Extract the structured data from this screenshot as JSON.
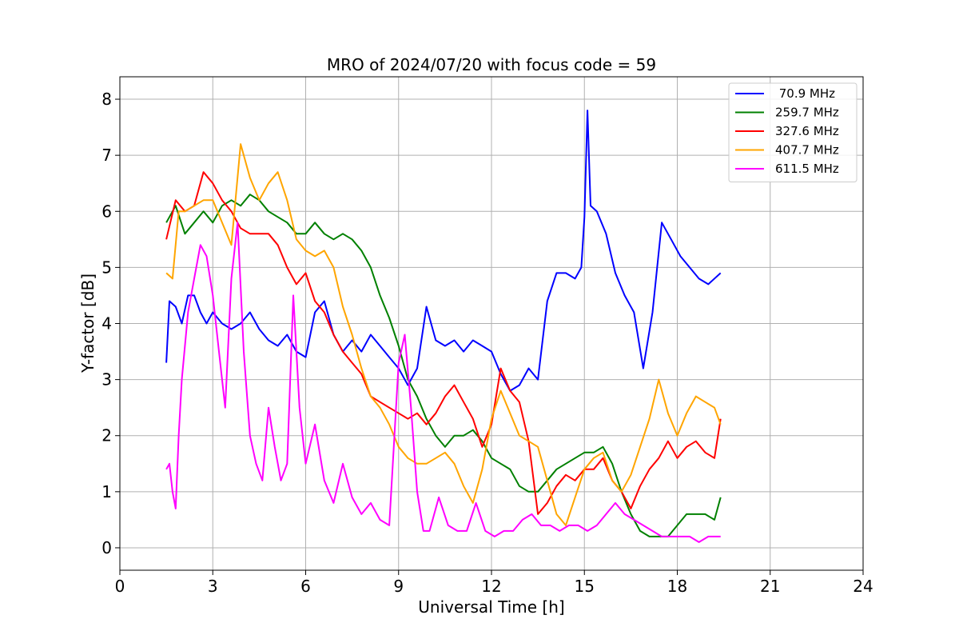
{
  "chart_data": {
    "type": "line",
    "title": "MRO of 2024/07/20 with focus code = 59",
    "xlabel": "Universal Time [h]",
    "ylabel": "Y-factor [dB]",
    "xlim": [
      0,
      24
    ],
    "ylim": [
      -0.4,
      8.4
    ],
    "xticks": [
      0,
      3,
      6,
      9,
      12,
      15,
      18,
      21,
      24
    ],
    "yticks": [
      0,
      1,
      2,
      3,
      4,
      5,
      6,
      7,
      8
    ],
    "grid": true,
    "legend_position": "top-right",
    "series": [
      {
        "name": " 70.9 MHz",
        "color": "#0000ff",
        "x": [
          1.5,
          1.6,
          1.8,
          2.0,
          2.2,
          2.4,
          2.6,
          2.8,
          3.0,
          3.3,
          3.6,
          3.9,
          4.2,
          4.5,
          4.8,
          5.1,
          5.4,
          5.7,
          6.0,
          6.3,
          6.6,
          6.9,
          7.2,
          7.5,
          7.8,
          8.1,
          8.4,
          8.7,
          9.0,
          9.3,
          9.6,
          9.9,
          10.2,
          10.5,
          10.8,
          11.1,
          11.4,
          11.7,
          12.0,
          12.3,
          12.6,
          12.9,
          13.2,
          13.5,
          13.8,
          14.1,
          14.4,
          14.7,
          14.9,
          15.0,
          15.1,
          15.2,
          15.4,
          15.7,
          16.0,
          16.3,
          16.6,
          16.9,
          17.2,
          17.5,
          17.8,
          18.1,
          18.4,
          18.7,
          19.0,
          19.4
        ],
        "y": [
          3.3,
          4.4,
          4.3,
          4.0,
          4.5,
          4.5,
          4.2,
          4.0,
          4.2,
          4.0,
          3.9,
          4.0,
          4.2,
          3.9,
          3.7,
          3.6,
          3.8,
          3.5,
          3.4,
          4.2,
          4.4,
          3.8,
          3.5,
          3.7,
          3.5,
          3.8,
          3.6,
          3.4,
          3.2,
          2.9,
          3.2,
          4.3,
          3.7,
          3.6,
          3.7,
          3.5,
          3.7,
          3.6,
          3.5,
          3.1,
          2.8,
          2.9,
          3.2,
          3.0,
          4.4,
          4.9,
          4.9,
          4.8,
          5.0,
          5.9,
          7.8,
          6.1,
          6.0,
          5.6,
          4.9,
          4.5,
          4.2,
          3.2,
          4.2,
          5.8,
          5.5,
          5.2,
          5.0,
          4.8,
          4.7,
          4.9
        ]
      },
      {
        "name": "259.7 MHz",
        "color": "#008000",
        "x": [
          1.5,
          1.8,
          2.1,
          2.4,
          2.7,
          3.0,
          3.3,
          3.6,
          3.9,
          4.2,
          4.5,
          4.8,
          5.1,
          5.4,
          5.7,
          6.0,
          6.3,
          6.6,
          6.9,
          7.2,
          7.5,
          7.8,
          8.1,
          8.4,
          8.7,
          9.0,
          9.3,
          9.6,
          9.9,
          10.2,
          10.5,
          10.8,
          11.1,
          11.4,
          11.7,
          12.0,
          12.3,
          12.6,
          12.9,
          13.2,
          13.5,
          13.8,
          14.1,
          14.4,
          14.7,
          15.0,
          15.3,
          15.6,
          15.9,
          16.2,
          16.5,
          16.8,
          17.1,
          17.4,
          17.7,
          18.0,
          18.3,
          18.6,
          18.9,
          19.2,
          19.4
        ],
        "y": [
          5.8,
          6.1,
          5.6,
          5.8,
          6.0,
          5.8,
          6.1,
          6.2,
          6.1,
          6.3,
          6.2,
          6.0,
          5.9,
          5.8,
          5.6,
          5.6,
          5.8,
          5.6,
          5.5,
          5.6,
          5.5,
          5.3,
          5.0,
          4.5,
          4.1,
          3.6,
          3.0,
          2.7,
          2.3,
          2.0,
          1.8,
          2.0,
          2.0,
          2.1,
          1.9,
          1.6,
          1.5,
          1.4,
          1.1,
          1.0,
          1.0,
          1.2,
          1.4,
          1.5,
          1.6,
          1.7,
          1.7,
          1.8,
          1.5,
          1.0,
          0.6,
          0.3,
          0.2,
          0.2,
          0.2,
          0.4,
          0.6,
          0.6,
          0.6,
          0.5,
          0.9
        ]
      },
      {
        "name": "327.6 MHz",
        "color": "#ff0000",
        "x": [
          1.5,
          1.8,
          2.1,
          2.4,
          2.7,
          3.0,
          3.3,
          3.6,
          3.9,
          4.2,
          4.5,
          4.8,
          5.1,
          5.4,
          5.7,
          6.0,
          6.3,
          6.6,
          6.9,
          7.2,
          7.5,
          7.8,
          8.1,
          8.4,
          8.7,
          9.0,
          9.3,
          9.6,
          9.9,
          10.2,
          10.5,
          10.8,
          11.1,
          11.4,
          11.7,
          12.0,
          12.3,
          12.6,
          12.9,
          13.2,
          13.5,
          13.8,
          14.1,
          14.4,
          14.7,
          15.0,
          15.3,
          15.6,
          15.9,
          16.2,
          16.5,
          16.8,
          17.1,
          17.4,
          17.7,
          18.0,
          18.3,
          18.6,
          18.9,
          19.2,
          19.4
        ],
        "y": [
          5.5,
          6.2,
          6.0,
          6.1,
          6.7,
          6.5,
          6.2,
          6.0,
          5.7,
          5.6,
          5.6,
          5.6,
          5.4,
          5.0,
          4.7,
          4.9,
          4.4,
          4.2,
          3.8,
          3.5,
          3.3,
          3.1,
          2.7,
          2.6,
          2.5,
          2.4,
          2.3,
          2.4,
          2.2,
          2.4,
          2.7,
          2.9,
          2.6,
          2.3,
          1.8,
          2.2,
          3.2,
          2.8,
          2.6,
          1.9,
          0.6,
          0.8,
          1.1,
          1.3,
          1.2,
          1.4,
          1.4,
          1.6,
          1.2,
          1.0,
          0.7,
          1.1,
          1.4,
          1.6,
          1.9,
          1.6,
          1.8,
          1.9,
          1.7,
          1.6,
          2.3
        ]
      },
      {
        "name": "407.7 MHz",
        "color": "#ffa500",
        "x": [
          1.5,
          1.7,
          1.9,
          2.1,
          2.4,
          2.7,
          3.0,
          3.3,
          3.6,
          3.9,
          4.2,
          4.5,
          4.8,
          5.1,
          5.4,
          5.7,
          6.0,
          6.3,
          6.6,
          6.9,
          7.2,
          7.5,
          7.8,
          8.1,
          8.4,
          8.7,
          9.0,
          9.3,
          9.6,
          9.9,
          10.2,
          10.5,
          10.8,
          11.1,
          11.4,
          11.7,
          12.0,
          12.3,
          12.6,
          12.9,
          13.2,
          13.5,
          13.8,
          14.1,
          14.4,
          14.7,
          15.0,
          15.3,
          15.6,
          15.9,
          16.2,
          16.5,
          16.8,
          17.1,
          17.4,
          17.7,
          18.0,
          18.3,
          18.6,
          18.9,
          19.2,
          19.4
        ],
        "y": [
          4.9,
          4.8,
          6.0,
          6.0,
          6.1,
          6.2,
          6.2,
          5.8,
          5.4,
          7.2,
          6.6,
          6.2,
          6.5,
          6.7,
          6.2,
          5.5,
          5.3,
          5.2,
          5.3,
          5.0,
          4.3,
          3.8,
          3.2,
          2.7,
          2.5,
          2.2,
          1.8,
          1.6,
          1.5,
          1.5,
          1.6,
          1.7,
          1.5,
          1.1,
          0.8,
          1.4,
          2.3,
          2.8,
          2.4,
          2.0,
          1.9,
          1.8,
          1.2,
          0.6,
          0.4,
          0.9,
          1.4,
          1.6,
          1.7,
          1.2,
          1.0,
          1.3,
          1.8,
          2.3,
          3.0,
          2.4,
          2.0,
          2.4,
          2.7,
          2.6,
          2.5,
          2.2
        ]
      },
      {
        "name": "611.5 MHz",
        "color": "#ff00ff",
        "x": [
          1.5,
          1.6,
          1.7,
          1.8,
          1.9,
          2.0,
          2.2,
          2.4,
          2.6,
          2.8,
          3.0,
          3.2,
          3.4,
          3.6,
          3.8,
          4.0,
          4.2,
          4.4,
          4.6,
          4.8,
          5.0,
          5.2,
          5.4,
          5.6,
          5.8,
          6.0,
          6.3,
          6.6,
          6.9,
          7.2,
          7.5,
          7.8,
          8.1,
          8.4,
          8.7,
          9.0,
          9.2,
          9.4,
          9.6,
          9.8,
          10.0,
          10.3,
          10.6,
          10.9,
          11.2,
          11.5,
          11.8,
          12.1,
          12.4,
          12.7,
          13.0,
          13.3,
          13.6,
          13.9,
          14.2,
          14.5,
          14.8,
          15.1,
          15.4,
          15.7,
          16.0,
          16.3,
          16.6,
          16.9,
          17.2,
          17.5,
          17.8,
          18.1,
          18.4,
          18.7,
          19.0,
          19.4
        ],
        "y": [
          1.4,
          1.5,
          1.0,
          0.7,
          2.0,
          3.0,
          4.2,
          4.8,
          5.4,
          5.2,
          4.5,
          3.5,
          2.5,
          4.8,
          5.8,
          3.5,
          2.0,
          1.5,
          1.2,
          2.5,
          1.8,
          1.2,
          1.5,
          4.5,
          2.5,
          1.5,
          2.2,
          1.2,
          0.8,
          1.5,
          0.9,
          0.6,
          0.8,
          0.5,
          0.4,
          3.3,
          3.8,
          2.5,
          1.0,
          0.3,
          0.3,
          0.9,
          0.4,
          0.3,
          0.3,
          0.8,
          0.3,
          0.2,
          0.3,
          0.3,
          0.5,
          0.6,
          0.4,
          0.4,
          0.3,
          0.4,
          0.4,
          0.3,
          0.4,
          0.6,
          0.8,
          0.6,
          0.5,
          0.4,
          0.3,
          0.2,
          0.2,
          0.2,
          0.2,
          0.1,
          0.2,
          0.2
        ]
      }
    ]
  }
}
